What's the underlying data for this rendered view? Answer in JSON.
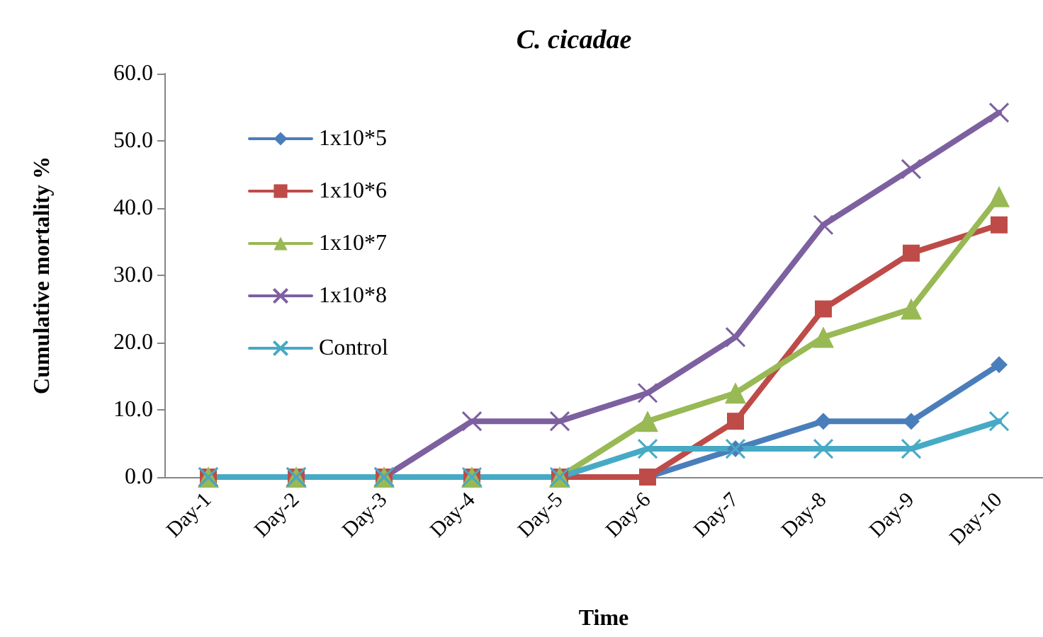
{
  "chart_data": {
    "type": "line",
    "title": "C. cicadae",
    "xlabel": "Time",
    "ylabel": "Cumulative mortality %",
    "categories": [
      "Day-1",
      "Day-2",
      "Day-3",
      "Day-4",
      "Day-5",
      "Day-6",
      "Day-7",
      "Day-8",
      "Day-9",
      "Day-10"
    ],
    "series": [
      {
        "name": "1x10*5",
        "color": "#4a7ebb",
        "marker": "diamond",
        "values": [
          0,
          0,
          0,
          0,
          0,
          0,
          4.2,
          8.3,
          8.3,
          16.7
        ]
      },
      {
        "name": "1x10*6",
        "color": "#be4b48",
        "marker": "square",
        "values": [
          0,
          0,
          0,
          0,
          0,
          0,
          8.3,
          25,
          33.3,
          37.5
        ]
      },
      {
        "name": "1x10*7",
        "color": "#98b954",
        "marker": "triangle",
        "values": [
          0,
          0,
          0,
          0,
          0,
          8.3,
          12.5,
          20.8,
          25,
          41.7
        ]
      },
      {
        "name": "1x10*8",
        "color": "#7d60a0",
        "marker": "cross",
        "values": [
          0,
          0,
          0,
          8.3,
          8.3,
          12.5,
          20.8,
          37.5,
          45.8,
          54.2
        ]
      },
      {
        "name": "Control",
        "color": "#46aac5",
        "marker": "cross",
        "values": [
          0,
          0,
          0,
          0,
          0,
          4.2,
          4.2,
          4.2,
          4.2,
          8.3
        ]
      }
    ],
    "ylim": [
      0,
      60
    ],
    "yticks": [
      {
        "value": 0,
        "label": "0.0"
      },
      {
        "value": 10,
        "label": "10.0"
      },
      {
        "value": 20,
        "label": "20.0"
      },
      {
        "value": 30,
        "label": "30.0"
      },
      {
        "value": 40,
        "label": "40.0"
      },
      {
        "value": 50,
        "label": "50.0"
      },
      {
        "value": 60,
        "label": "60.0"
      }
    ],
    "grid": false,
    "legend": "top left",
    "line_style": "solid"
  }
}
